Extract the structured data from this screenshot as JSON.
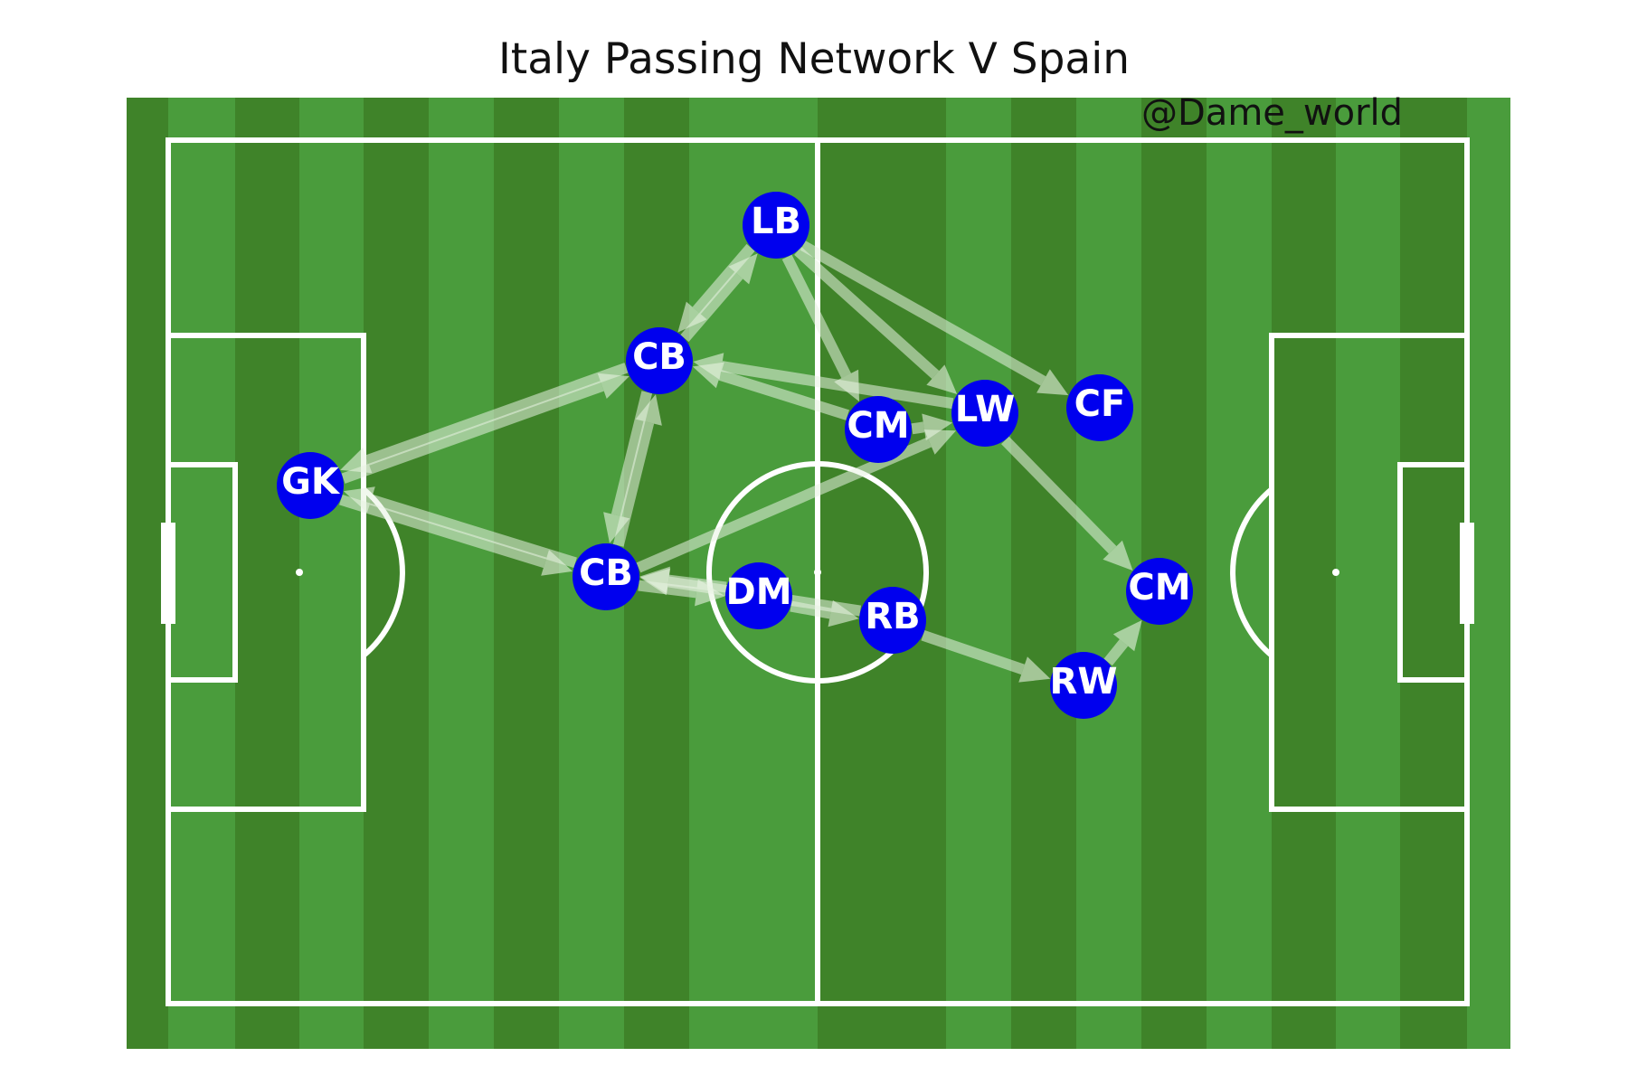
{
  "title": "Italy Passing Network V Spain",
  "credit": "@Dame_world",
  "colors": {
    "pitch_light": "#4a9c3c",
    "pitch_dark": "#3f8329",
    "lines": "#ffffff",
    "node": "#0000ee",
    "pass": "#e8f3e1"
  },
  "players": [
    {
      "id": "gk",
      "label": "GK"
    },
    {
      "id": "lb",
      "label": "LB"
    },
    {
      "id": "cb1",
      "label": "CB"
    },
    {
      "id": "cb2",
      "label": "CB"
    },
    {
      "id": "dm",
      "label": "DM"
    },
    {
      "id": "rb",
      "label": "RB"
    },
    {
      "id": "cm1",
      "label": "CM"
    },
    {
      "id": "lw",
      "label": "LW"
    },
    {
      "id": "cf",
      "label": "CF"
    },
    {
      "id": "cm2",
      "label": "CM"
    },
    {
      "id": "rw",
      "label": "RW"
    }
  ],
  "passes": [
    {
      "from": "cb1",
      "to": "lb"
    },
    {
      "from": "lb",
      "to": "cb1"
    },
    {
      "from": "lb",
      "to": "cm1"
    },
    {
      "from": "lb",
      "to": "lw"
    },
    {
      "from": "lb",
      "to": "cf"
    },
    {
      "from": "gk",
      "to": "cb1"
    },
    {
      "from": "cb1",
      "to": "gk"
    },
    {
      "from": "gk",
      "to": "cb2"
    },
    {
      "from": "cb2",
      "to": "gk"
    },
    {
      "from": "cb1",
      "to": "cb2"
    },
    {
      "from": "cb2",
      "to": "cb1"
    },
    {
      "from": "lw",
      "to": "cb1"
    },
    {
      "from": "cm1",
      "to": "cb1"
    },
    {
      "from": "cb2",
      "to": "lw"
    },
    {
      "from": "cm1",
      "to": "lw"
    },
    {
      "from": "lw",
      "to": "cm2"
    },
    {
      "from": "cb2",
      "to": "dm"
    },
    {
      "from": "dm",
      "to": "cb2"
    },
    {
      "from": "dm",
      "to": "rb"
    },
    {
      "from": "rb",
      "to": "cb2"
    },
    {
      "from": "rb",
      "to": "rw"
    },
    {
      "from": "rw",
      "to": "cm2"
    }
  ]
}
